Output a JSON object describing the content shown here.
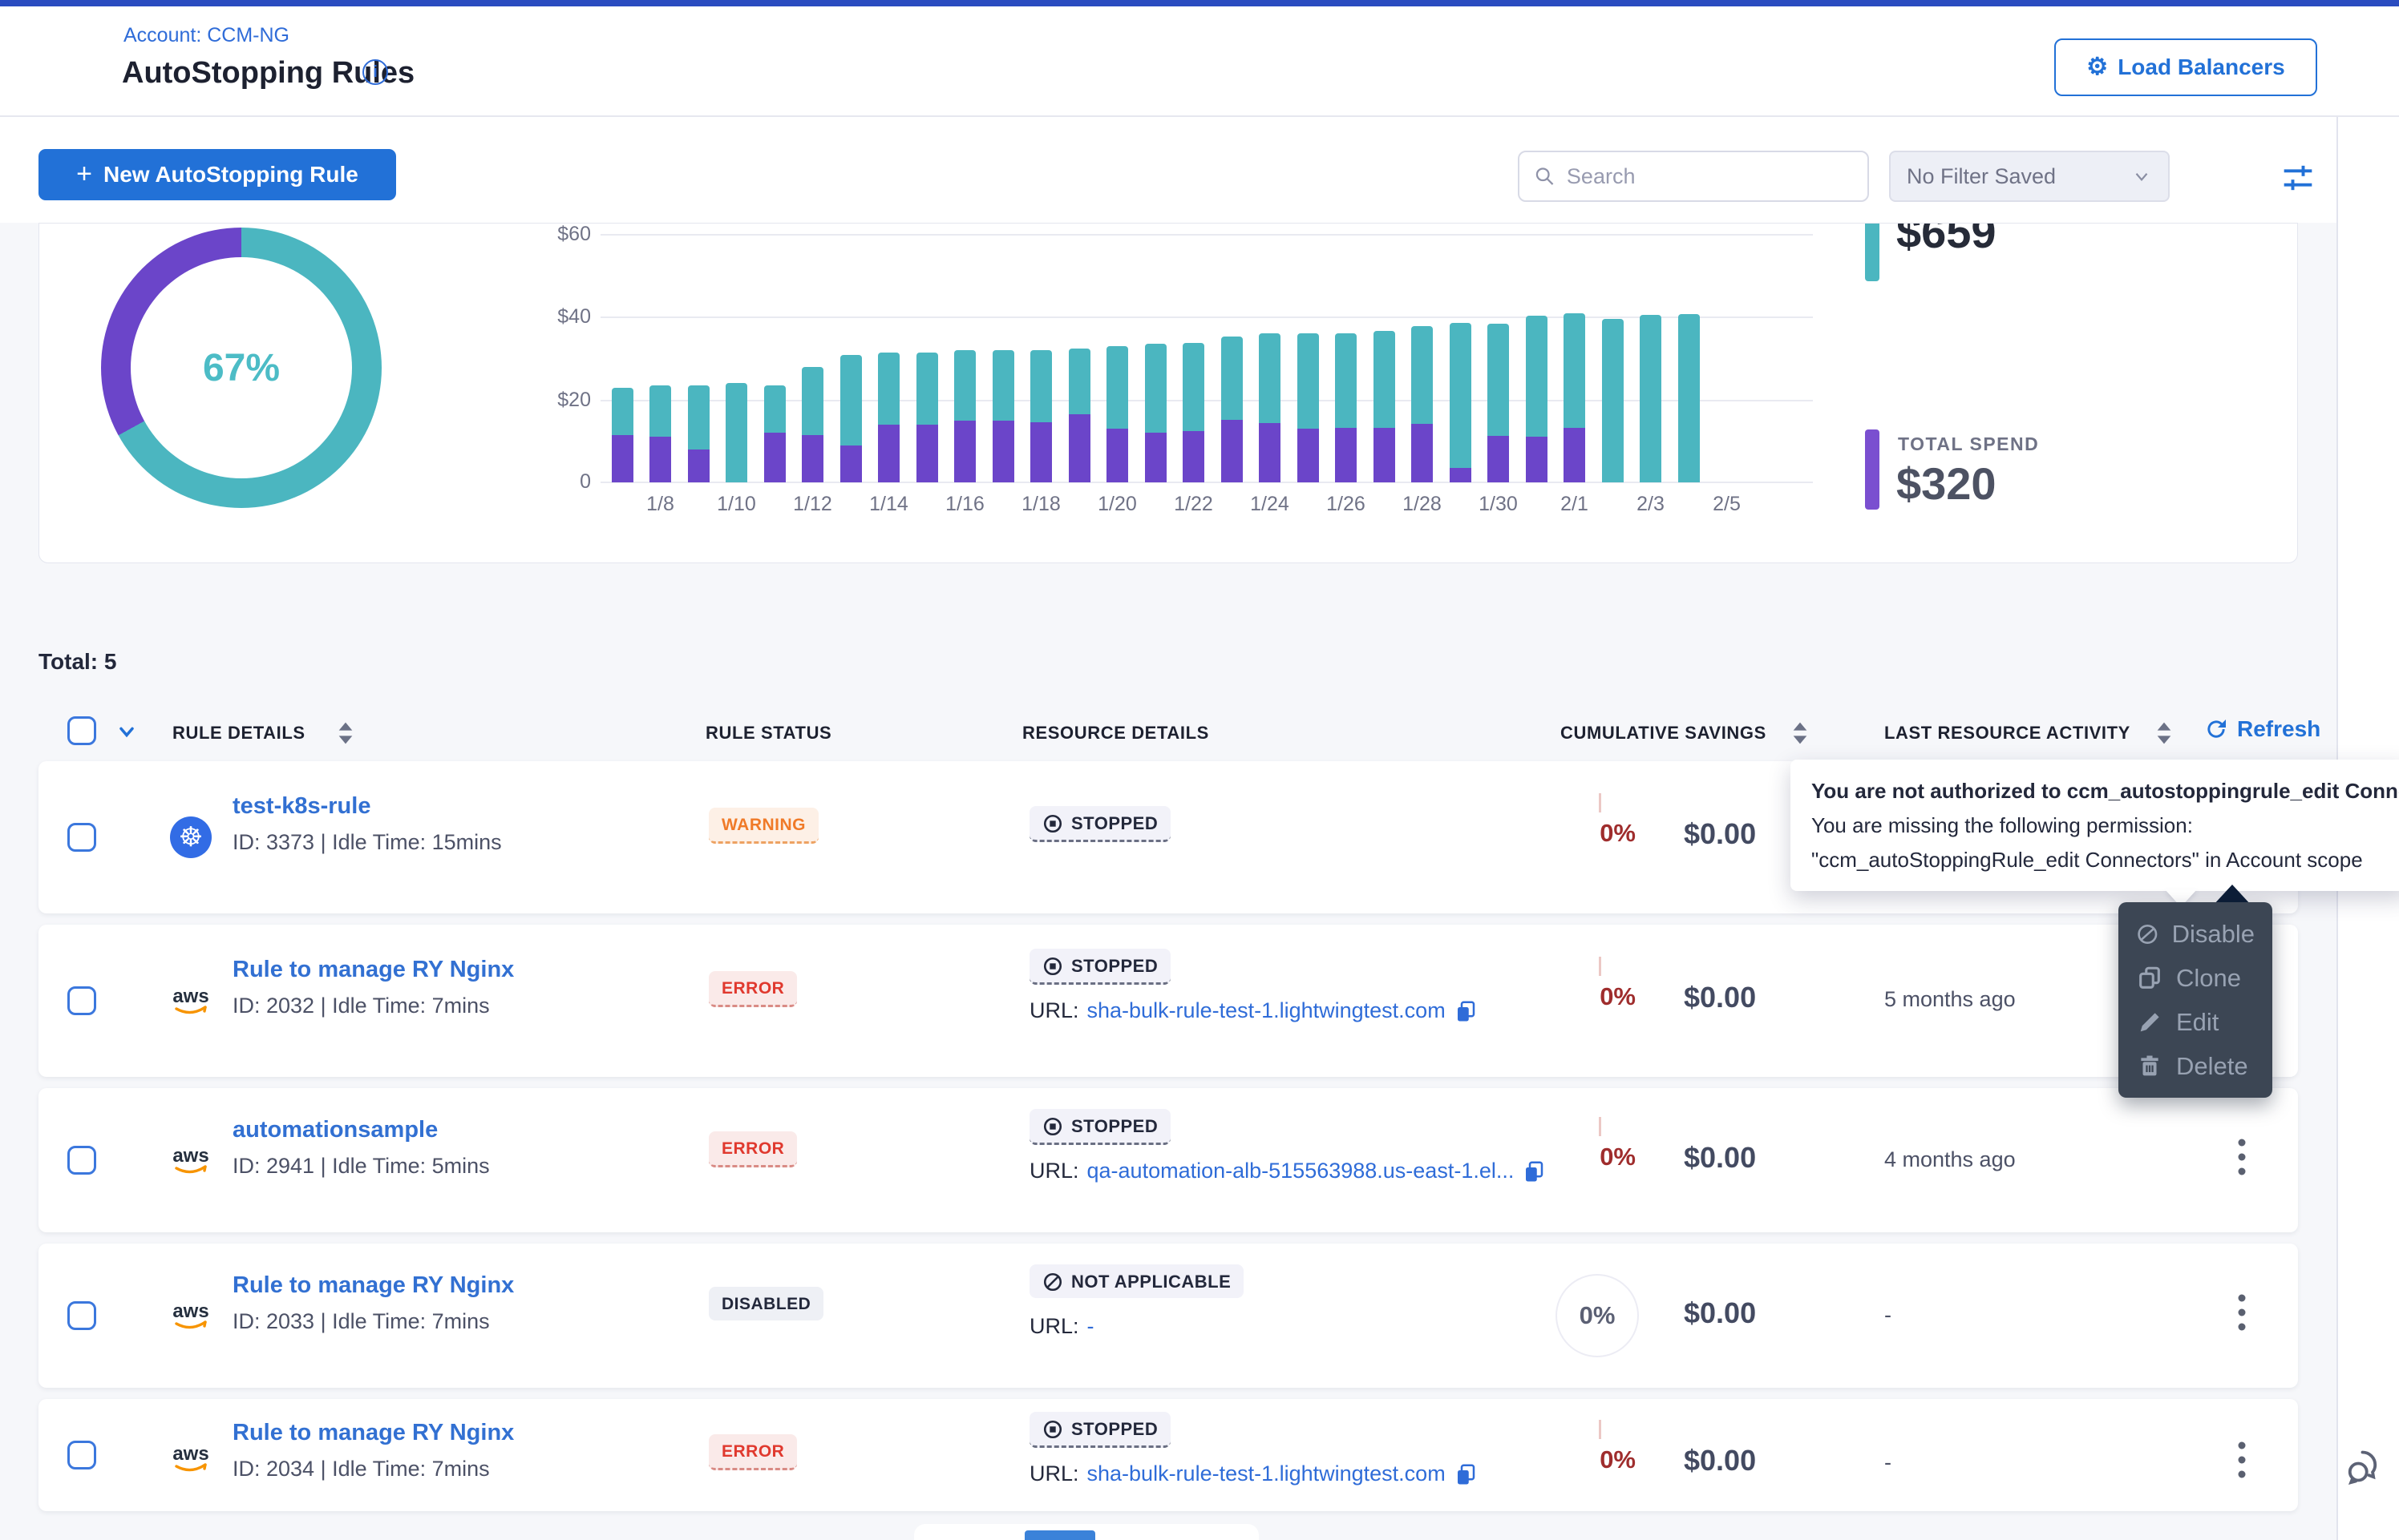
{
  "account_label": "Account: CCM-NG",
  "page_title": "AutoStopping Rules",
  "load_balancers_label": "Load Balancers",
  "toolbar": {
    "new_rule_label": "New AutoStopping Rule",
    "search_placeholder": "Search",
    "filter_select_label": "No Filter Saved"
  },
  "summary": {
    "total_savings_value": "$659",
    "total_spend_label": "TOTAL SPEND",
    "total_spend_value": "$320"
  },
  "chart_data": [
    {
      "type": "pie",
      "title": "Savings percentage donut",
      "labels": [
        "Savings",
        "Spend"
      ],
      "values": [
        67,
        33
      ],
      "colors": [
        "#4bb6c0",
        "#6b45c9"
      ],
      "center_label": "67%"
    },
    {
      "type": "bar",
      "stacked": true,
      "title": "Daily spend vs savings",
      "x": [
        "1/7",
        "1/8",
        "1/9",
        "1/10",
        "1/11",
        "1/12",
        "1/13",
        "1/14",
        "1/15",
        "1/16",
        "1/17",
        "1/18",
        "1/19",
        "1/20",
        "1/21",
        "1/22",
        "1/23",
        "1/24",
        "1/25",
        "1/26",
        "1/27",
        "1/28",
        "1/29",
        "1/30",
        "1/31",
        "2/1",
        "2/2",
        "2/3",
        "2/4"
      ],
      "series": [
        {
          "name": "Spend",
          "color": "#6b45c9",
          "values": [
            11.5,
            11,
            8,
            0,
            12,
            11.5,
            9,
            14,
            14,
            15,
            15,
            14.5,
            16.5,
            13,
            12,
            12.4,
            15.1,
            14.4,
            13,
            13.2,
            13.2,
            14.1,
            3.5,
            11.3,
            11,
            13.2,
            0,
            0,
            0
          ]
        },
        {
          "name": "Savings",
          "color": "#4bb6c0",
          "values": [
            11.5,
            12.5,
            15.5,
            24,
            11.5,
            16.5,
            22,
            17.5,
            17.5,
            17,
            17,
            17.5,
            16,
            20,
            21.5,
            21.3,
            20.1,
            21.8,
            23.2,
            23,
            23.5,
            23.7,
            35.1,
            27.1,
            29.3,
            27.7,
            39.7,
            40.5,
            40.7
          ]
        }
      ],
      "ylim": [
        0,
        63
      ],
      "ytick_labels": [
        "0",
        "$20",
        "$40",
        "$60"
      ],
      "xtick_labels_shown": [
        "1/8",
        "1/10",
        "1/12",
        "1/14",
        "1/16",
        "1/18",
        "1/20",
        "1/22",
        "1/24",
        "1/26",
        "1/28",
        "1/30",
        "2/1",
        "2/3",
        "2/5"
      ],
      "grid": true,
      "legend": "none"
    }
  ],
  "table": {
    "total_label": "Total: 5",
    "refresh_label": "Refresh",
    "columns": [
      "RULE DETAILS",
      "RULE STATUS",
      "RESOURCE DETAILS",
      "CUMULATIVE SAVINGS",
      "LAST RESOURCE ACTIVITY"
    ],
    "rows": [
      {
        "provider": "kubernetes",
        "title": "test-k8s-rule",
        "meta": "ID: 3373 | Idle Time: 15mins",
        "status": "WARNING",
        "resource_status": "STOPPED",
        "savings_pct": "0%",
        "savings_amount": "$0.00"
      },
      {
        "provider": "aws",
        "title": "Rule to manage RY Nginx",
        "meta": "ID: 2032 | Idle Time: 7mins",
        "status": "ERROR",
        "resource_status": "STOPPED",
        "url_label": "URL:",
        "url": "sha-bulk-rule-test-1.lightwingtest.com",
        "savings_pct": "0%",
        "savings_amount": "$0.00",
        "activity": "5 months ago"
      },
      {
        "provider": "aws",
        "title": "automationsample",
        "meta": "ID: 2941 | Idle Time: 5mins",
        "status": "ERROR",
        "resource_status": "STOPPED",
        "url_label": "URL:",
        "url": "qa-automation-alb-515563988.us-east-1.el...",
        "savings_pct": "0%",
        "savings_amount": "$0.00",
        "activity": "4 months ago"
      },
      {
        "provider": "aws",
        "title": "Rule to manage RY Nginx",
        "meta": "ID: 2033 | Idle Time: 7mins",
        "status": "DISABLED",
        "resource_status": "NOT APPLICABLE",
        "url_label": "URL:",
        "url": "-",
        "savings_pct": "0%",
        "savings_amount": "$0.00",
        "activity": "-"
      },
      {
        "provider": "aws",
        "title": "Rule to manage RY Nginx",
        "meta": "ID: 2034 | Idle Time: 7mins",
        "status": "ERROR",
        "resource_status": "STOPPED",
        "url_label": "URL:",
        "url": "sha-bulk-rule-test-1.lightwingtest.com",
        "savings_pct": "0%",
        "savings_amount": "$0.00",
        "activity": "-"
      }
    ]
  },
  "tooltip": {
    "lines": [
      "You are not authorized to ccm_autostoppingrule_edit Connectors.",
      "You are missing the following permission:",
      "\"ccm_autoStoppingRule_edit Connectors\" in Account scope"
    ]
  },
  "context_menu": {
    "items": [
      {
        "label": "Disable",
        "icon": "disable-icon"
      },
      {
        "label": "Clone",
        "icon": "clone-icon"
      },
      {
        "label": "Edit",
        "icon": "edit-icon"
      },
      {
        "label": "Delete",
        "icon": "delete-icon"
      }
    ]
  },
  "colors": {
    "primary": "#2271d7",
    "link": "#3270d2",
    "teal": "#4bb6c0",
    "purple": "#6b45c9",
    "error": "#e0392e",
    "warning": "#f07a28",
    "dark_red_pct": "#9f2d2d",
    "menu_bg": "#3c4654",
    "top_strip": "#2a4cc0",
    "body_bg": "#f6f7fa"
  }
}
